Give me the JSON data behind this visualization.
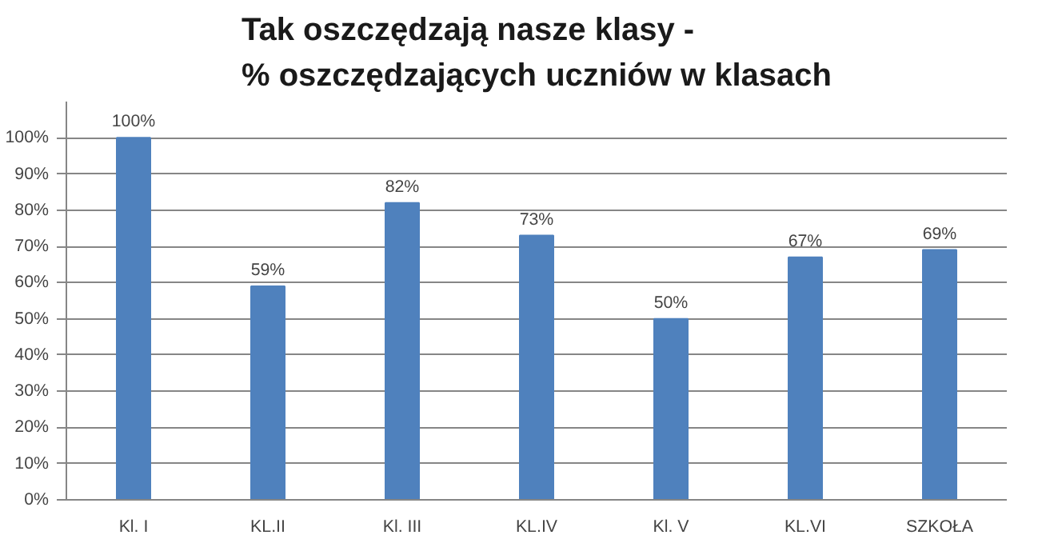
{
  "chart_data": {
    "type": "bar",
    "title": "Tak oszczędzają nasze klasy -\n% oszczędzających uczniów w klasach",
    "categories": [
      "Kl. I",
      "KL.II",
      "Kl. III",
      "KL.IV",
      "Kl. V",
      "KL.VI",
      "SZKOŁA"
    ],
    "values": [
      100,
      59,
      82,
      73,
      50,
      67,
      69
    ],
    "value_labels": [
      "100%",
      "59%",
      "82%",
      "73%",
      "50%",
      "67%",
      "69%"
    ],
    "color": "#4f81bd",
    "ylim": [
      0,
      110
    ],
    "yticks": [
      {
        "value": 0,
        "label": "0%"
      },
      {
        "value": 10,
        "label": "10%"
      },
      {
        "value": 20,
        "label": "20%"
      },
      {
        "value": 30,
        "label": "30%"
      },
      {
        "value": 40,
        "label": "40%"
      },
      {
        "value": 50,
        "label": "50%"
      },
      {
        "value": 60,
        "label": "60%"
      },
      {
        "value": 70,
        "label": "70%"
      },
      {
        "value": 80,
        "label": "80%"
      },
      {
        "value": 90,
        "label": "90%"
      },
      {
        "value": 100,
        "label": "100%"
      }
    ],
    "grid": "y"
  }
}
